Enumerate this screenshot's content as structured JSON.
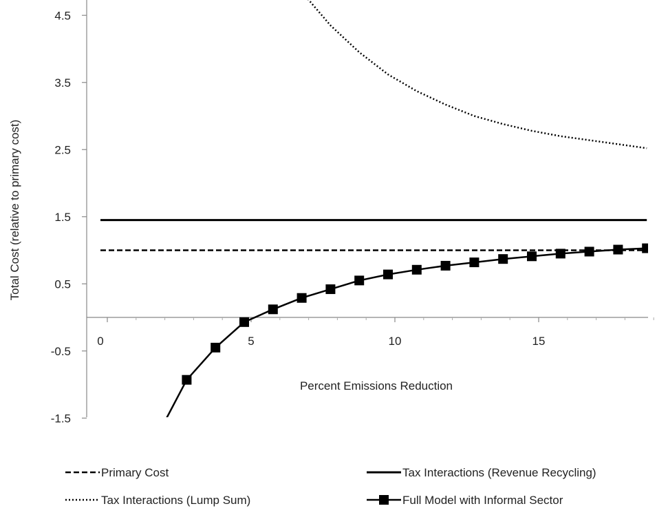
{
  "chart_data": {
    "type": "line",
    "title": "",
    "xlabel": "Percent Emissions Reduction",
    "ylabel": "Total Cost (relative to primary cost)",
    "xlim": [
      -0.5,
      19.5
    ],
    "ylim": [
      -1.5,
      4.9
    ],
    "x_ticks": [
      0,
      5,
      10,
      15
    ],
    "x_tick_labels": [
      "0",
      "5",
      "10",
      "15"
    ],
    "y_ticks": [
      4.5,
      3.5,
      2.5,
      1.5,
      0.5,
      -0.5,
      -1.5
    ],
    "y_tick_labels": [
      "4.5",
      "3.5",
      "2.5",
      "1.5",
      "0.5",
      "-0.5",
      "-1.5"
    ],
    "grid": false,
    "legend_position": "bottom",
    "series": [
      {
        "name": "Primary Cost",
        "style": "dashed",
        "color": "#000000",
        "x": [
          0,
          19
        ],
        "y": [
          1.0,
          1.0
        ]
      },
      {
        "name": "Tax Interactions (Revenue Recycling)",
        "style": "solid",
        "color": "#000000",
        "x": [
          0,
          19
        ],
        "y": [
          1.45,
          1.45
        ]
      },
      {
        "name": "Tax Interactions (Lump Sum)",
        "style": "dotted",
        "color": "#000000",
        "x": [
          6.9,
          7.5,
          8,
          9,
          10,
          11,
          12,
          13,
          14,
          15,
          16,
          17,
          18,
          19
        ],
        "y": [
          4.9,
          4.6,
          4.35,
          3.95,
          3.62,
          3.37,
          3.17,
          3.0,
          2.88,
          2.78,
          2.7,
          2.64,
          2.58,
          2.52
        ]
      },
      {
        "name": "Full Model with Informal Sector",
        "style": "solid-square",
        "color": "#000000",
        "x": [
          2.3,
          3,
          4,
          5,
          6,
          7,
          8,
          9,
          10,
          11,
          12,
          13,
          14,
          15,
          16,
          17,
          18,
          19
        ],
        "y": [
          -1.5,
          -0.93,
          -0.45,
          -0.07,
          0.12,
          0.29,
          0.42,
          0.55,
          0.64,
          0.71,
          0.77,
          0.82,
          0.87,
          0.91,
          0.95,
          0.98,
          1.01,
          1.03
        ],
        "marker_x": [
          3,
          4,
          5,
          6,
          7,
          8,
          9,
          10,
          11,
          12,
          13,
          14,
          15,
          16,
          17,
          18,
          19
        ]
      }
    ]
  }
}
